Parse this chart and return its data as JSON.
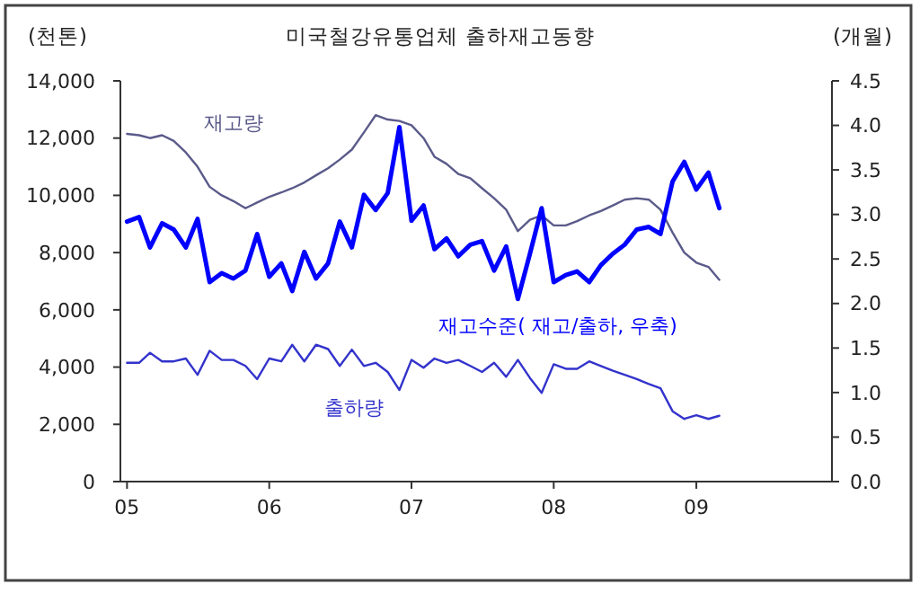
{
  "chart_data": {
    "type": "line",
    "title": "미국철강유통업체 출하재고동향",
    "ylabel": "(천톤)",
    "y2label": "(개월)",
    "x": [
      "2005-01",
      "2005-02",
      "2005-03",
      "2005-04",
      "2005-05",
      "2005-06",
      "2005-07",
      "2005-08",
      "2005-09",
      "2005-10",
      "2005-11",
      "2005-12",
      "2006-01",
      "2006-02",
      "2006-03",
      "2006-04",
      "2006-05",
      "2006-06",
      "2006-07",
      "2006-08",
      "2006-09",
      "2006-10",
      "2006-11",
      "2006-12",
      "2007-01",
      "2007-02",
      "2007-03",
      "2007-04",
      "2007-05",
      "2007-06",
      "2007-07",
      "2007-08",
      "2007-09",
      "2007-10",
      "2007-11",
      "2007-12",
      "2008-01",
      "2008-02",
      "2008-03",
      "2008-04",
      "2008-05",
      "2008-06",
      "2008-07",
      "2008-08",
      "2008-09",
      "2008-10",
      "2008-11",
      "2008-12",
      "2009-01",
      "2009-02",
      "2009-03"
    ],
    "xlim": [
      "2004-12-15",
      "2009-12-15"
    ],
    "xticks": [
      {
        "value": "2005-01",
        "label": "05"
      },
      {
        "value": "2006-01",
        "label": "06"
      },
      {
        "value": "2007-01",
        "label": "07"
      },
      {
        "value": "2008-01",
        "label": "08"
      },
      {
        "value": "2009-01",
        "label": "09"
      }
    ],
    "ylim": [
      0,
      14000
    ],
    "yticks": [
      {
        "value": 0,
        "label": "0"
      },
      {
        "value": 2000,
        "label": "2,000"
      },
      {
        "value": 4000,
        "label": "4,000"
      },
      {
        "value": 6000,
        "label": "6,000"
      },
      {
        "value": 8000,
        "label": "8,000"
      },
      {
        "value": 10000,
        "label": "10,000"
      },
      {
        "value": 12000,
        "label": "12,000"
      },
      {
        "value": 14000,
        "label": "14,000"
      }
    ],
    "y2lim": [
      0,
      4.5
    ],
    "y2ticks": [
      {
        "value": 0,
        "label": "0.0"
      },
      {
        "value": 0.5,
        "label": "0.5"
      },
      {
        "value": 1,
        "label": "1.0"
      },
      {
        "value": 1.5,
        "label": "1.5"
      },
      {
        "value": 2,
        "label": "2.0"
      },
      {
        "value": 2.5,
        "label": "2.5"
      },
      {
        "value": 3,
        "label": "3.0"
      },
      {
        "value": 3.5,
        "label": "3.5"
      },
      {
        "value": 4,
        "label": "4.0"
      },
      {
        "value": 4.5,
        "label": "4.5"
      }
    ],
    "grid": false,
    "marker": "none",
    "line_style": "solid",
    "series": [
      {
        "name": "재고량",
        "color": "#5a5a8a",
        "values": [
          12150,
          12100,
          12000,
          12100,
          11900,
          11500,
          11000,
          10300,
          10000,
          9800,
          9550,
          9750,
          9950,
          10100,
          10250,
          10450,
          10700,
          10950,
          11250,
          11600,
          12200,
          12800,
          12650,
          12600,
          12450,
          12000,
          11350,
          11100,
          10750,
          10600,
          10250,
          9900,
          9500,
          8750,
          9150,
          9300,
          8950,
          8950,
          9100,
          9300,
          9450,
          9650,
          9850,
          9900,
          9850,
          9500,
          8700,
          8000,
          7650,
          7500,
          7050
        ]
      },
      {
        "name": "재고수준( 재고/출하, 우축)",
        "color": "#0000ff",
        "axis": "y2",
        "values": [
          2.92,
          2.97,
          2.63,
          2.9,
          2.83,
          2.63,
          2.95,
          2.24,
          2.34,
          2.28,
          2.37,
          2.78,
          2.3,
          2.45,
          2.14,
          2.58,
          2.28,
          2.45,
          2.92,
          2.63,
          3.22,
          3.05,
          3.24,
          3.98,
          2.93,
          3.1,
          2.61,
          2.73,
          2.53,
          2.66,
          2.7,
          2.37,
          2.64,
          2.05,
          2.56,
          3.07,
          2.24,
          2.32,
          2.36,
          2.24,
          2.43,
          2.56,
          2.66,
          2.83,
          2.86,
          2.78,
          3.37,
          3.59,
          3.28,
          3.47,
          3.07
        ]
      },
      {
        "name": "출하량",
        "color": "#3333cc",
        "values": [
          4150,
          4150,
          4500,
          4200,
          4200,
          4300,
          3730,
          4570,
          4250,
          4250,
          4040,
          3580,
          4300,
          4200,
          4780,
          4200,
          4780,
          4630,
          4040,
          4610,
          4040,
          4150,
          3830,
          3200,
          4250,
          3980,
          4300,
          4150,
          4250,
          4040,
          3830,
          4150,
          3660,
          4250,
          3620,
          3100,
          4100,
          3940,
          3940,
          4200,
          4040,
          3870,
          3730,
          3580,
          3410,
          3260,
          2460,
          2190,
          2320,
          2190,
          2300
        ]
      }
    ]
  }
}
